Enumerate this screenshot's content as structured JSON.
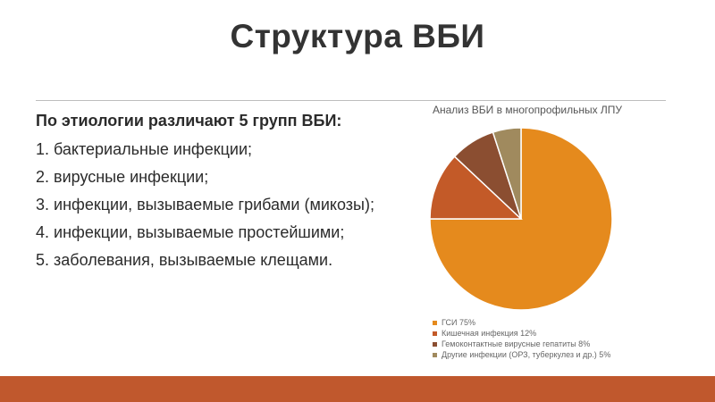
{
  "slide": {
    "title": "Структура ВБИ",
    "intro": "По этиологии различают 5 групп ВБИ:",
    "items": [
      "1. бактериальные инфекции;",
      "2. вирусные инфекции;",
      "3. инфекции, вызываемые грибами (микозы);",
      "4. инфекции, вызываемые простейшими;",
      "5. заболевания, вызываемые клещами."
    ]
  },
  "colors": {
    "accent_bar": "#c0582d"
  },
  "chart_data": {
    "type": "pie",
    "title": "Анализ ВБИ в многопрофильных ЛПУ",
    "slices": [
      {
        "label": "ГСИ 75%",
        "value": 75,
        "color": "#e58a1d"
      },
      {
        "label": "Кишечная инфекция 12%",
        "value": 12,
        "color": "#c35a28"
      },
      {
        "label": "Гемоконтактные вирусные гепатиты 8%",
        "value": 8,
        "color": "#8b4e31"
      },
      {
        "label": "Другие инфекции (ОРЗ, туберкулез и др.) 5%",
        "value": 5,
        "color": "#a08a5e"
      }
    ],
    "legend_position": "bottom-left"
  }
}
